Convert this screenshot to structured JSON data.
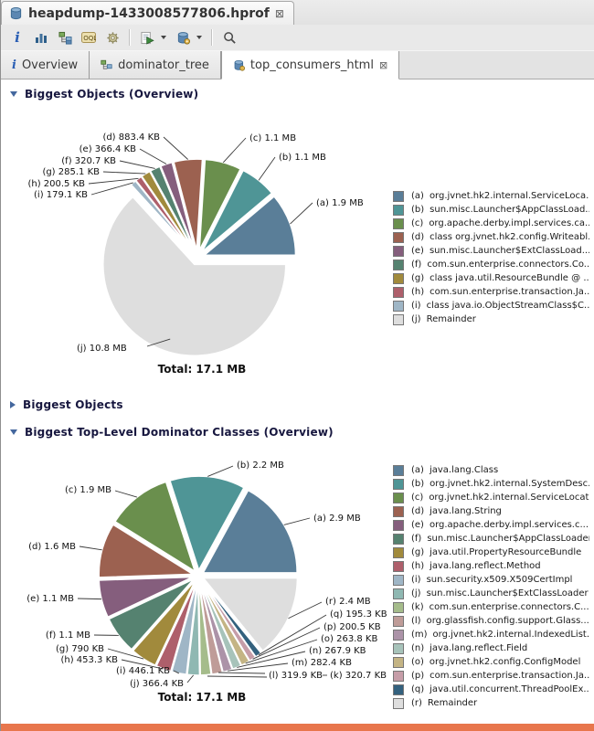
{
  "window": {
    "editor_tab": {
      "title": "heapdump-1433008577806.hprof",
      "close_glyph": "⊠"
    },
    "toolbar": {
      "icons": [
        {
          "name": "info"
        },
        {
          "name": "histogram"
        },
        {
          "name": "dominator-tree"
        },
        {
          "name": "oql",
          "label": "OQL"
        },
        {
          "name": "settings-gear"
        },
        {
          "name": "run-expert-report",
          "dropdown": true
        },
        {
          "name": "heap-dump-actions",
          "dropdown": true
        },
        {
          "name": "search"
        }
      ]
    },
    "tabs": [
      {
        "label": "Overview",
        "icon": "info",
        "active": false
      },
      {
        "label": "dominator_tree",
        "icon": "tree",
        "active": false
      },
      {
        "label": "top_consumers_html",
        "icon": "database-gear",
        "active": true,
        "close_glyph": "⊠"
      }
    ]
  },
  "sections": [
    {
      "title": "Biggest Objects (Overview)",
      "state": "expanded"
    },
    {
      "title": "Biggest Objects",
      "state": "collapsed"
    },
    {
      "title": "Biggest Top-Level Dominator Classes (Overview)",
      "state": "expanded"
    }
  ],
  "chart_data": [
    {
      "type": "pie",
      "title": "Biggest Objects (Overview)",
      "total_label": "Total: 17.1 MB",
      "unit": "KB",
      "legend_position": "right",
      "slices": [
        {
          "key": "(a)",
          "callout": "(a) 1.9 MB",
          "value_kb": 1945.6,
          "legend": "org.jvnet.hk2.internal.ServiceLoca...",
          "color": "#5a7e98"
        },
        {
          "key": "(b)",
          "callout": "(b) 1.1 MB",
          "value_kb": 1126.4,
          "legend": "sun.misc.Launcher$AppClassLoad...",
          "color": "#4f9596"
        },
        {
          "key": "(c)",
          "callout": "(c) 1.1 MB",
          "value_kb": 1126.4,
          "legend": "org.apache.derby.impl.services.ca...",
          "color": "#6a8f4d"
        },
        {
          "key": "(d)",
          "callout": "(d) 883.4 KB",
          "value_kb": 883.4,
          "legend": "class org.jvnet.hk2.config.Writeabl...",
          "color": "#9c6150"
        },
        {
          "key": "(e)",
          "callout": "(e) 366.4 KB",
          "value_kb": 366.4,
          "legend": "sun.misc.Launcher$ExtClassLoad...",
          "color": "#855e7d"
        },
        {
          "key": "(f)",
          "callout": "(f) 320.7 KB",
          "value_kb": 320.7,
          "legend": "com.sun.enterprise.connectors.Co...",
          "color": "#558270"
        },
        {
          "key": "(g)",
          "callout": "(g) 285.1 KB",
          "value_kb": 285.1,
          "legend": "class java.util.ResourceBundle @ ...",
          "color": "#a18a3c"
        },
        {
          "key": "(h)",
          "callout": "(h) 200.5 KB",
          "value_kb": 200.5,
          "legend": "com.sun.enterprise.transaction.Ja...",
          "color": "#ae5f6b"
        },
        {
          "key": "(i)",
          "callout": "(i) 179.1 KB",
          "value_kb": 179.1,
          "legend": "class java.io.ObjectStreamClass$C...",
          "color": "#9fb6c6"
        },
        {
          "key": "(j)",
          "callout": "(j) 10.8 MB",
          "value_kb": 11059.2,
          "legend": "Remainder",
          "color": "#dedede"
        }
      ]
    },
    {
      "type": "pie",
      "title": "Biggest Top-Level Dominator Classes (Overview)",
      "total_label": "Total: 17.1 MB",
      "unit": "KB",
      "legend_position": "right",
      "slices": [
        {
          "key": "(a)",
          "callout": "(a) 2.9 MB",
          "value_kb": 2969.6,
          "legend": "java.lang.Class",
          "color": "#5a7e98"
        },
        {
          "key": "(b)",
          "callout": "(b) 2.2 MB",
          "value_kb": 2252.8,
          "legend": "org.jvnet.hk2.internal.SystemDesc...",
          "color": "#4f9596"
        },
        {
          "key": "(c)",
          "callout": "(c) 1.9 MB",
          "value_kb": 1945.6,
          "legend": "org.jvnet.hk2.internal.ServiceLocat...",
          "color": "#6a8f4d"
        },
        {
          "key": "(d)",
          "callout": "(d) 1.6 MB",
          "value_kb": 1638.4,
          "legend": "java.lang.String",
          "color": "#9c6150"
        },
        {
          "key": "(e)",
          "callout": "(e) 1.1 MB",
          "value_kb": 1126.4,
          "legend": "org.apache.derby.impl.services.c...",
          "color": "#855e7d"
        },
        {
          "key": "(f)",
          "callout": "(f) 1.1 MB",
          "value_kb": 1126.4,
          "legend": "sun.misc.Launcher$AppClassLoader",
          "color": "#558270"
        },
        {
          "key": "(g)",
          "callout": "(g) 790 KB",
          "value_kb": 790.0,
          "legend": "java.util.PropertyResourceBundle",
          "color": "#a18a3c"
        },
        {
          "key": "(h)",
          "callout": "(h) 453.3 KB",
          "value_kb": 453.3,
          "legend": "java.lang.reflect.Method",
          "color": "#ae5f6b"
        },
        {
          "key": "(i)",
          "callout": "(i) 446.1 KB",
          "value_kb": 446.1,
          "legend": "sun.security.x509.X509CertImpl",
          "color": "#9fb6c6"
        },
        {
          "key": "(j)",
          "callout": "(j) 366.4 KB",
          "value_kb": 366.4,
          "legend": "sun.misc.Launcher$ExtClassLoader",
          "color": "#8fb8b2"
        },
        {
          "key": "(k)",
          "callout": "(k) 320.7 KB",
          "value_kb": 320.7,
          "legend": "com.sun.enterprise.connectors.C...",
          "color": "#a5bc8b"
        },
        {
          "key": "(l)",
          "callout": "(l) 319.9 KB",
          "value_kb": 319.9,
          "legend": "org.glassfish.config.support.Glass...",
          "color": "#bf9c98"
        },
        {
          "key": "(m)",
          "callout": "(m) 282.4 KB",
          "value_kb": 282.4,
          "legend": "org.jvnet.hk2.internal.IndexedList...",
          "color": "#ac93a8"
        },
        {
          "key": "(n)",
          "callout": "(n) 267.9 KB",
          "value_kb": 267.9,
          "legend": "java.lang.reflect.Field",
          "color": "#a7c3ba"
        },
        {
          "key": "(o)",
          "callout": "(o) 263.8 KB",
          "value_kb": 263.8,
          "legend": "org.jvnet.hk2.config.ConfigModel",
          "color": "#c4b484"
        },
        {
          "key": "(p)",
          "callout": "(p) 200.5 KB",
          "value_kb": 200.5,
          "legend": "com.sun.enterprise.transaction.Ja...",
          "color": "#c69da8"
        },
        {
          "key": "(q)",
          "callout": "(q) 195.3 KB",
          "value_kb": 195.3,
          "legend": "java.util.concurrent.ThreadPoolEx...",
          "color": "#33617e"
        },
        {
          "key": "(r)",
          "callout": "(r) 2.4 MB",
          "value_kb": 2457.6,
          "legend": "Remainder",
          "color": "#dedede"
        }
      ]
    }
  ],
  "accents": {
    "bottom_bar_color": "#e8764c",
    "header_text_color": "#17173f"
  }
}
